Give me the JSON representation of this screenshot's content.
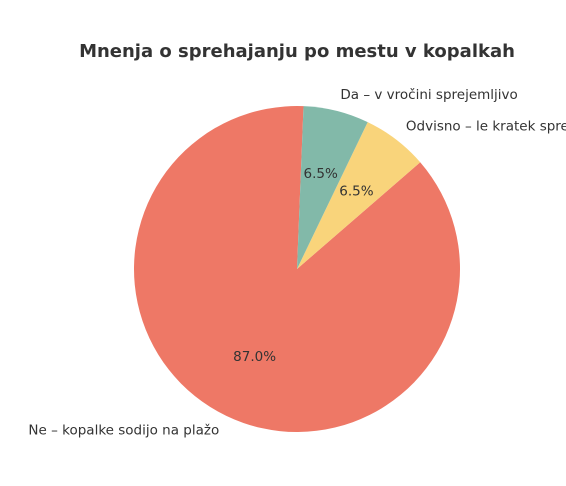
{
  "chart_data": {
    "type": "pie",
    "title": "Mnenja o sprehajanju po mestu v kopalkah",
    "slices": [
      {
        "label": "Ne – kopalke sodijo na plažo",
        "value": 87.0,
        "pct_label": "87.0%",
        "color": "#ee7866"
      },
      {
        "label": "Odvisno – le kratek sprehod",
        "value": 6.5,
        "pct_label": "6.5%",
        "color": "#f9d47b"
      },
      {
        "label": "Da – v vročini sprejemljivo",
        "value": 6.5,
        "pct_label": "6.5%",
        "color": "#82b9a9"
      }
    ],
    "start_angle_deg": 87.7,
    "direction": "counterclockwise",
    "legend": "none"
  }
}
